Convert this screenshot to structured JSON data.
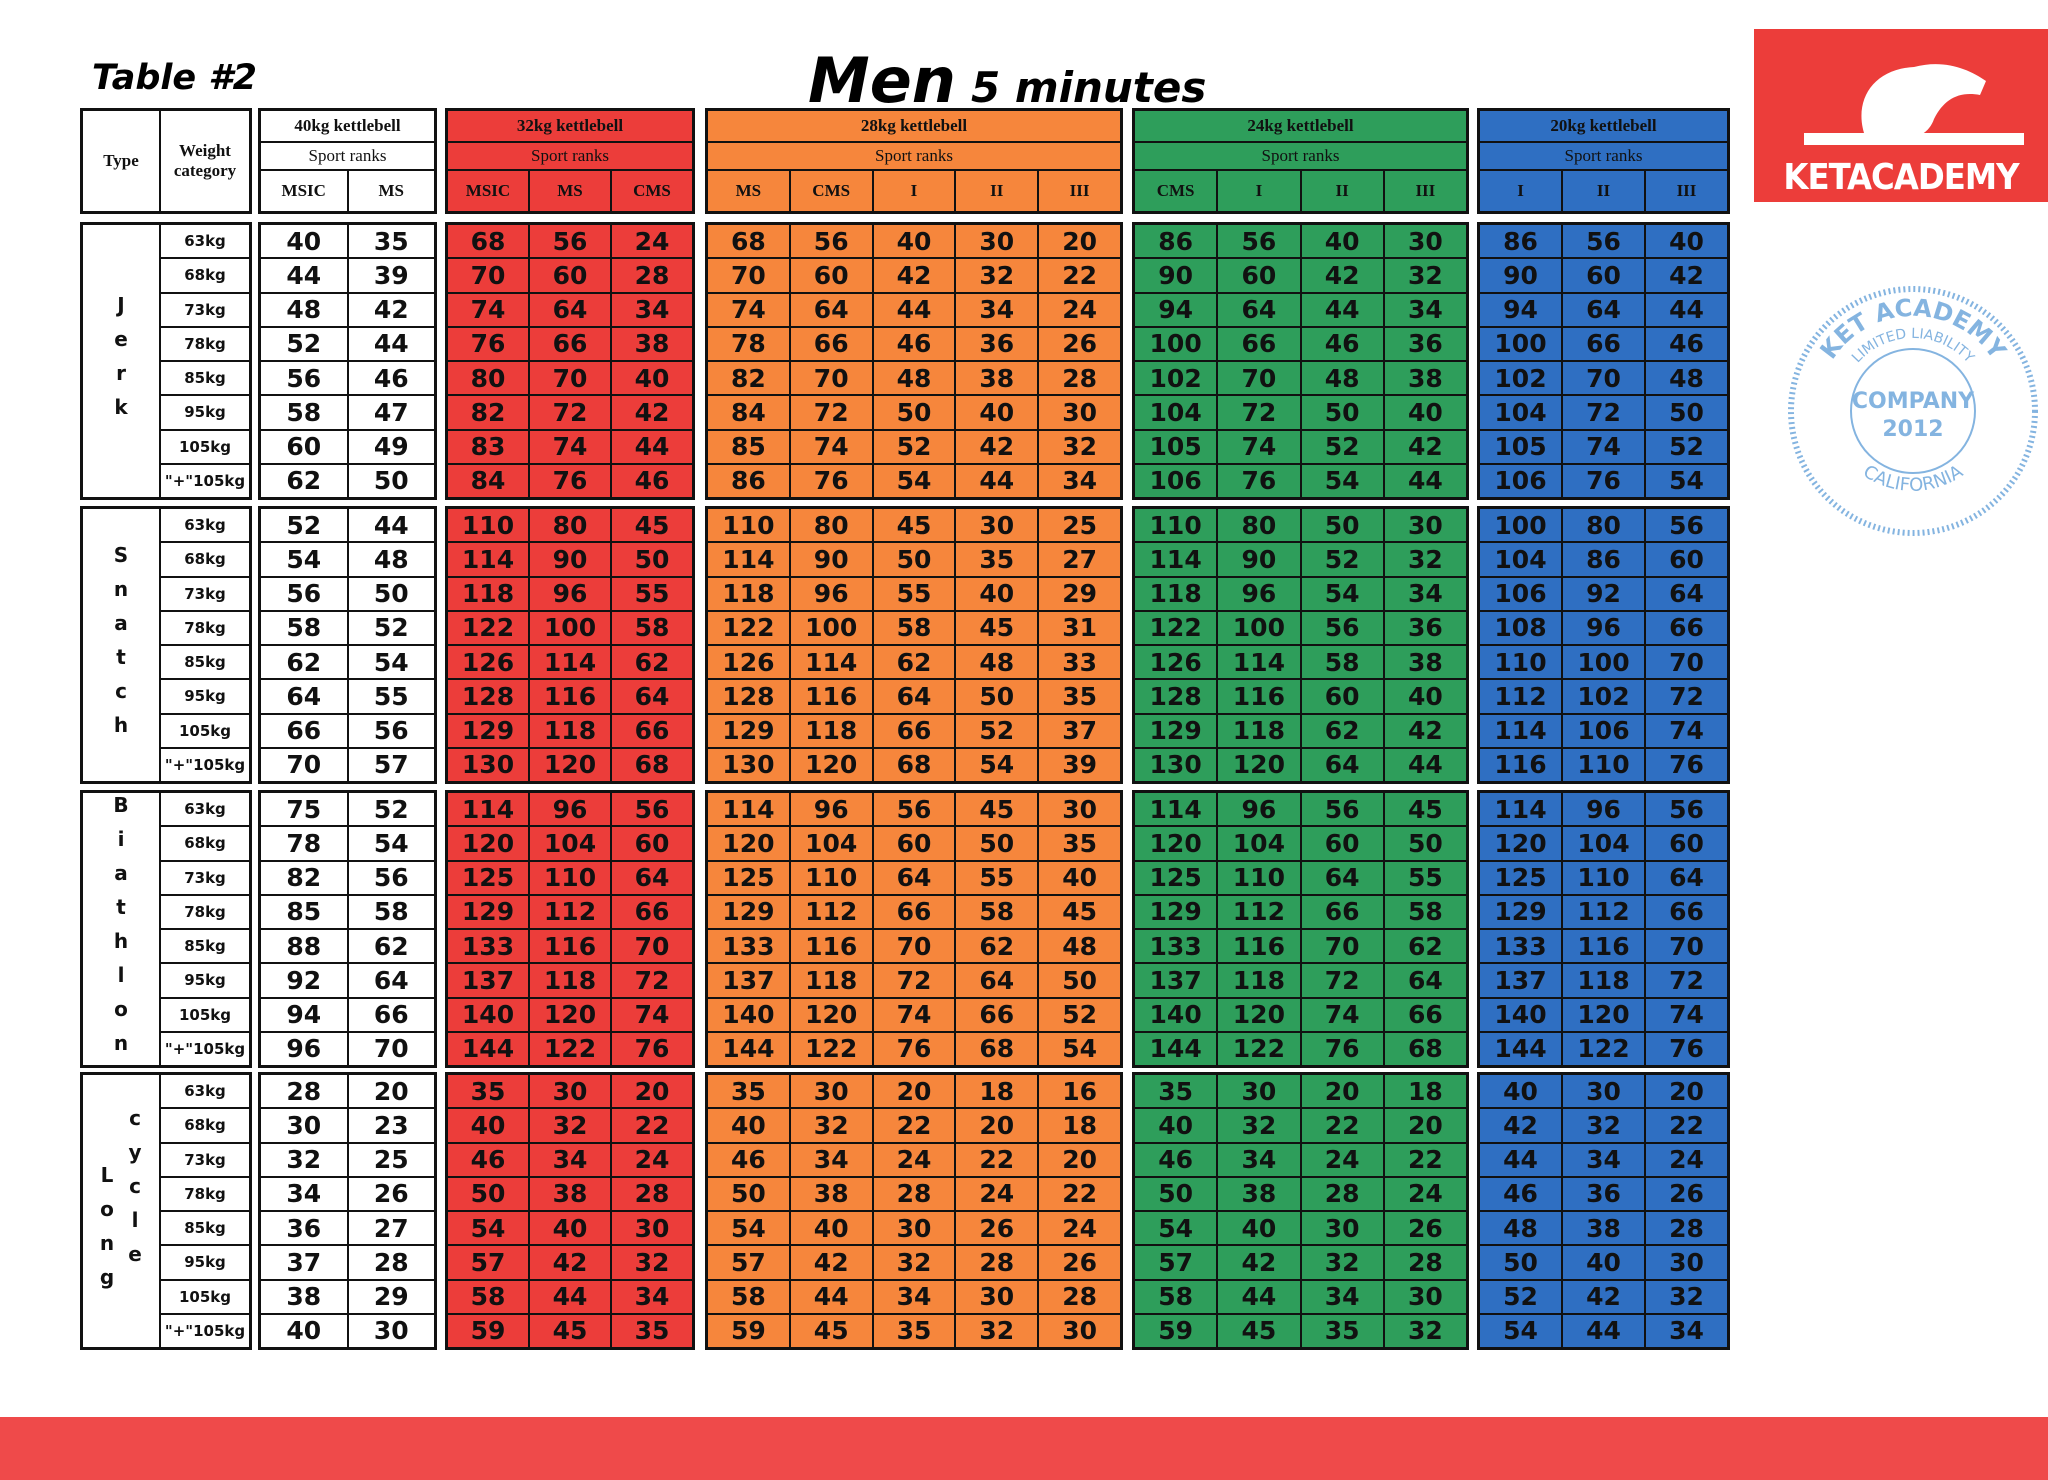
{
  "header": {
    "table_label": "Table #2",
    "title": "Men",
    "subtitle": "5 minutes",
    "type_label": "Type",
    "weight_label": "Weight category"
  },
  "logo": {
    "text": "KETACADEMY"
  },
  "stamp": {
    "top": "KET ACADEMY",
    "middle": "LIMITED LIABILITY",
    "company": "COMPANY",
    "year": "2012",
    "bottom": "CALIFORNIA"
  },
  "weight_categories": [
    "63kg",
    "68kg",
    "73kg",
    "78kg",
    "85kg",
    "95kg",
    "105kg",
    "\"+\"105kg"
  ],
  "groups": [
    {
      "name": "40kg kettlebell",
      "sub": "Sport ranks",
      "ranks": [
        "MSIC",
        "MS"
      ],
      "color": "#ffffff"
    },
    {
      "name": "32kg kettlebell",
      "sub": "Sport ranks",
      "ranks": [
        "MSIC",
        "MS",
        "CMS"
      ],
      "color": "#ec3d3a"
    },
    {
      "name": "28kg kettlebell",
      "sub": "Sport ranks",
      "ranks": [
        "MS",
        "CMS",
        "I",
        "II",
        "III"
      ],
      "color": "#f6863c"
    },
    {
      "name": "24kg kettlebell",
      "sub": "Sport ranks",
      "ranks": [
        "CMS",
        "I",
        "II",
        "III"
      ],
      "color": "#2e9e5b"
    },
    {
      "name": "20kg kettlebell",
      "sub": "Sport ranks",
      "ranks": [
        "I",
        "II",
        "III"
      ],
      "color": "#2f6fc2"
    }
  ],
  "sections": [
    {
      "type": [
        "Jerk"
      ],
      "rows": [
        [
          [
            40,
            35
          ],
          [
            68,
            56,
            24
          ],
          [
            68,
            56,
            40,
            30,
            20
          ],
          [
            86,
            56,
            40,
            30
          ],
          [
            86,
            56,
            40
          ]
        ],
        [
          [
            44,
            39
          ],
          [
            70,
            60,
            28
          ],
          [
            70,
            60,
            42,
            32,
            22
          ],
          [
            90,
            60,
            42,
            32
          ],
          [
            90,
            60,
            42
          ]
        ],
        [
          [
            48,
            42
          ],
          [
            74,
            64,
            34
          ],
          [
            74,
            64,
            44,
            34,
            24
          ],
          [
            94,
            64,
            44,
            34
          ],
          [
            94,
            64,
            44
          ]
        ],
        [
          [
            52,
            44
          ],
          [
            76,
            66,
            38
          ],
          [
            78,
            66,
            46,
            36,
            26
          ],
          [
            100,
            66,
            46,
            36
          ],
          [
            100,
            66,
            46
          ]
        ],
        [
          [
            56,
            46
          ],
          [
            80,
            70,
            40
          ],
          [
            82,
            70,
            48,
            38,
            28
          ],
          [
            102,
            70,
            48,
            38
          ],
          [
            102,
            70,
            48
          ]
        ],
        [
          [
            58,
            47
          ],
          [
            82,
            72,
            42
          ],
          [
            84,
            72,
            50,
            40,
            30
          ],
          [
            104,
            72,
            50,
            40
          ],
          [
            104,
            72,
            50
          ]
        ],
        [
          [
            60,
            49
          ],
          [
            83,
            74,
            44
          ],
          [
            85,
            74,
            52,
            42,
            32
          ],
          [
            105,
            74,
            52,
            42
          ],
          [
            105,
            74,
            52
          ]
        ],
        [
          [
            62,
            50
          ],
          [
            84,
            76,
            46
          ],
          [
            86,
            76,
            54,
            44,
            34
          ],
          [
            106,
            76,
            54,
            44
          ],
          [
            106,
            76,
            54
          ]
        ]
      ]
    },
    {
      "type": [
        "Snatch"
      ],
      "rows": [
        [
          [
            52,
            44
          ],
          [
            110,
            80,
            45
          ],
          [
            110,
            80,
            45,
            30,
            25
          ],
          [
            110,
            80,
            50,
            30
          ],
          [
            100,
            80,
            56
          ]
        ],
        [
          [
            54,
            48
          ],
          [
            114,
            90,
            50
          ],
          [
            114,
            90,
            50,
            35,
            27
          ],
          [
            114,
            90,
            52,
            32
          ],
          [
            104,
            86,
            60
          ]
        ],
        [
          [
            56,
            50
          ],
          [
            118,
            96,
            55
          ],
          [
            118,
            96,
            55,
            40,
            29
          ],
          [
            118,
            96,
            54,
            34
          ],
          [
            106,
            92,
            64
          ]
        ],
        [
          [
            58,
            52
          ],
          [
            122,
            100,
            58
          ],
          [
            122,
            100,
            58,
            45,
            31
          ],
          [
            122,
            100,
            56,
            36
          ],
          [
            108,
            96,
            66
          ]
        ],
        [
          [
            62,
            54
          ],
          [
            126,
            114,
            62
          ],
          [
            126,
            114,
            62,
            48,
            33
          ],
          [
            126,
            114,
            58,
            38
          ],
          [
            110,
            100,
            70
          ]
        ],
        [
          [
            64,
            55
          ],
          [
            128,
            116,
            64
          ],
          [
            128,
            116,
            64,
            50,
            35
          ],
          [
            128,
            116,
            60,
            40
          ],
          [
            112,
            102,
            72
          ]
        ],
        [
          [
            66,
            56
          ],
          [
            129,
            118,
            66
          ],
          [
            129,
            118,
            66,
            52,
            37
          ],
          [
            129,
            118,
            62,
            42
          ],
          [
            114,
            106,
            74
          ]
        ],
        [
          [
            70,
            57
          ],
          [
            130,
            120,
            68
          ],
          [
            130,
            120,
            68,
            54,
            39
          ],
          [
            130,
            120,
            64,
            44
          ],
          [
            116,
            110,
            76
          ]
        ]
      ]
    },
    {
      "type": [
        "Biathlon"
      ],
      "rows": [
        [
          [
            75,
            52
          ],
          [
            114,
            96,
            56
          ],
          [
            114,
            96,
            56,
            45,
            30
          ],
          [
            114,
            96,
            56,
            45
          ],
          [
            114,
            96,
            56
          ]
        ],
        [
          [
            78,
            54
          ],
          [
            120,
            104,
            60
          ],
          [
            120,
            104,
            60,
            50,
            35
          ],
          [
            120,
            104,
            60,
            50
          ],
          [
            120,
            104,
            60
          ]
        ],
        [
          [
            82,
            56
          ],
          [
            125,
            110,
            64
          ],
          [
            125,
            110,
            64,
            55,
            40
          ],
          [
            125,
            110,
            64,
            55
          ],
          [
            125,
            110,
            64
          ]
        ],
        [
          [
            85,
            58
          ],
          [
            129,
            112,
            66
          ],
          [
            129,
            112,
            66,
            58,
            45
          ],
          [
            129,
            112,
            66,
            58
          ],
          [
            129,
            112,
            66
          ]
        ],
        [
          [
            88,
            62
          ],
          [
            133,
            116,
            70
          ],
          [
            133,
            116,
            70,
            62,
            48
          ],
          [
            133,
            116,
            70,
            62
          ],
          [
            133,
            116,
            70
          ]
        ],
        [
          [
            92,
            64
          ],
          [
            137,
            118,
            72
          ],
          [
            137,
            118,
            72,
            64,
            50
          ],
          [
            137,
            118,
            72,
            64
          ],
          [
            137,
            118,
            72
          ]
        ],
        [
          [
            94,
            66
          ],
          [
            140,
            120,
            74
          ],
          [
            140,
            120,
            74,
            66,
            52
          ],
          [
            140,
            120,
            74,
            66
          ],
          [
            140,
            120,
            74
          ]
        ],
        [
          [
            96,
            70
          ],
          [
            144,
            122,
            76
          ],
          [
            144,
            122,
            76,
            68,
            54
          ],
          [
            144,
            122,
            76,
            68
          ],
          [
            144,
            122,
            76
          ]
        ]
      ]
    },
    {
      "type": [
        "Long",
        "cycle"
      ],
      "rows": [
        [
          [
            28,
            20
          ],
          [
            35,
            30,
            20
          ],
          [
            35,
            30,
            20,
            18,
            16
          ],
          [
            35,
            30,
            20,
            18
          ],
          [
            40,
            30,
            20
          ]
        ],
        [
          [
            30,
            23
          ],
          [
            40,
            32,
            22
          ],
          [
            40,
            32,
            22,
            20,
            18
          ],
          [
            40,
            32,
            22,
            20
          ],
          [
            42,
            32,
            22
          ]
        ],
        [
          [
            32,
            25
          ],
          [
            46,
            34,
            24
          ],
          [
            46,
            34,
            24,
            22,
            20
          ],
          [
            46,
            34,
            24,
            22
          ],
          [
            44,
            34,
            24
          ]
        ],
        [
          [
            34,
            26
          ],
          [
            50,
            38,
            28
          ],
          [
            50,
            38,
            28,
            24,
            22
          ],
          [
            50,
            38,
            28,
            24
          ],
          [
            46,
            36,
            26
          ]
        ],
        [
          [
            36,
            27
          ],
          [
            54,
            40,
            30
          ],
          [
            54,
            40,
            30,
            26,
            24
          ],
          [
            54,
            40,
            30,
            26
          ],
          [
            48,
            38,
            28
          ]
        ],
        [
          [
            37,
            28
          ],
          [
            57,
            42,
            32
          ],
          [
            57,
            42,
            32,
            28,
            26
          ],
          [
            57,
            42,
            32,
            28
          ],
          [
            50,
            40,
            30
          ]
        ],
        [
          [
            38,
            29
          ],
          [
            58,
            44,
            34
          ],
          [
            58,
            44,
            34,
            30,
            28
          ],
          [
            58,
            44,
            34,
            30
          ],
          [
            52,
            42,
            32
          ]
        ],
        [
          [
            40,
            30
          ],
          [
            59,
            45,
            35
          ],
          [
            59,
            45,
            35,
            32,
            30
          ],
          [
            59,
            45,
            35,
            32
          ],
          [
            54,
            44,
            34
          ]
        ]
      ]
    }
  ]
}
